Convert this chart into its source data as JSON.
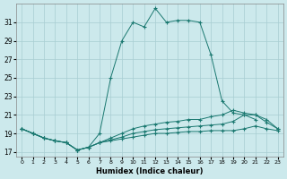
{
  "xlabel": "Humidex (Indice chaleur)",
  "bg_color": "#cce9ec",
  "grid_color": "#a8cdd2",
  "line_color": "#1a7870",
  "xlim": [
    -0.5,
    23.5
  ],
  "ylim": [
    16.5,
    33.0
  ],
  "xticks": [
    0,
    1,
    2,
    3,
    4,
    5,
    6,
    7,
    8,
    9,
    10,
    11,
    12,
    13,
    14,
    15,
    16,
    17,
    18,
    19,
    20,
    21,
    22,
    23
  ],
  "yticks": [
    17,
    19,
    21,
    23,
    25,
    27,
    29,
    31
  ],
  "lines": [
    {
      "x": [
        0,
        1,
        2,
        3,
        4,
        5,
        6,
        7,
        8,
        9,
        10,
        11,
        12,
        13,
        14,
        15,
        16,
        17,
        18,
        19,
        20,
        21
      ],
      "y": [
        19.5,
        19.0,
        18.5,
        18.2,
        18.0,
        17.2,
        17.5,
        19.0,
        25.0,
        29.0,
        31.0,
        30.5,
        32.5,
        31.0,
        31.2,
        31.2,
        31.0,
        27.5,
        22.5,
        21.2,
        21.0,
        20.5
      ]
    },
    {
      "x": [
        0,
        1,
        2,
        3,
        4,
        5,
        6,
        7,
        8,
        9,
        10,
        11,
        12,
        13,
        14,
        15,
        16,
        17,
        18,
        19,
        20,
        21,
        22,
        23
      ],
      "y": [
        19.5,
        19.0,
        18.5,
        18.2,
        18.0,
        17.2,
        17.5,
        18.0,
        18.5,
        19.0,
        19.5,
        19.8,
        20.0,
        20.2,
        20.3,
        20.5,
        20.5,
        20.8,
        21.0,
        21.5,
        21.2,
        21.0,
        20.5,
        19.5
      ]
    },
    {
      "x": [
        0,
        1,
        2,
        3,
        4,
        5,
        6,
        7,
        8,
        9,
        10,
        11,
        12,
        13,
        14,
        15,
        16,
        17,
        18,
        19,
        20,
        21,
        22,
        23
      ],
      "y": [
        19.5,
        19.0,
        18.5,
        18.2,
        18.0,
        17.2,
        17.5,
        18.0,
        18.3,
        18.6,
        19.0,
        19.2,
        19.4,
        19.5,
        19.6,
        19.7,
        19.8,
        19.9,
        20.0,
        20.3,
        21.0,
        21.0,
        20.2,
        19.5
      ]
    },
    {
      "x": [
        0,
        1,
        2,
        3,
        4,
        5,
        6,
        7,
        8,
        9,
        10,
        11,
        12,
        13,
        14,
        15,
        16,
        17,
        18,
        19,
        20,
        21,
        22,
        23
      ],
      "y": [
        19.5,
        19.0,
        18.5,
        18.2,
        18.0,
        17.2,
        17.5,
        18.0,
        18.2,
        18.4,
        18.6,
        18.8,
        19.0,
        19.0,
        19.1,
        19.2,
        19.2,
        19.3,
        19.3,
        19.3,
        19.5,
        19.8,
        19.5,
        19.3
      ]
    }
  ]
}
